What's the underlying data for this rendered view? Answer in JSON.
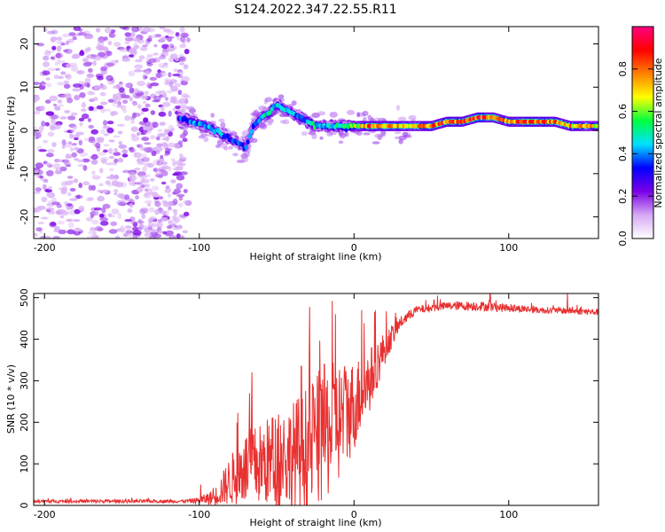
{
  "title": "S124.2022.347.22.55.R11",
  "chart_data": [
    {
      "type": "heatmap",
      "xlabel": "Height of straight line (km)",
      "ylabel": "Frequency (Hz)",
      "xlim": [
        -207,
        158
      ],
      "ylim": [
        -25,
        24
      ],
      "xticks": [
        -200,
        -100,
        0,
        100
      ],
      "yticks": [
        -20,
        -10,
        0,
        10,
        20
      ],
      "colorbar": {
        "label": "Normalized spectral amplitude",
        "range": [
          0.0,
          1.0
        ],
        "ticks": [
          "0.0",
          "0.2",
          "0.4",
          "0.6",
          "0.8"
        ],
        "colors": [
          "#ffffff",
          "#d6a9f5",
          "#7a00e6",
          "#0000ff",
          "#00e0ff",
          "#00ff40",
          "#ffff00",
          "#ff8000",
          "#ff0000",
          "#ff0080"
        ]
      },
      "ridge": {
        "x": [
          -115,
          -105,
          -95,
          -90,
          -85,
          -80,
          -75,
          -70,
          -65,
          -60,
          -55,
          -50,
          -45,
          -40,
          -35,
          -30,
          -25,
          -20,
          -10,
          0,
          10,
          20,
          30,
          40,
          50,
          60,
          70,
          80,
          85,
          90,
          100,
          110,
          120,
          130,
          140,
          158
        ],
        "freq": [
          3,
          2,
          1,
          0,
          -1,
          -2,
          -3,
          -4,
          1,
          3,
          4,
          6,
          5,
          4,
          3,
          2,
          1,
          1,
          1,
          1,
          1,
          1,
          1,
          1,
          1,
          2,
          2,
          3,
          3,
          3,
          2,
          2,
          2,
          2,
          1,
          1
        ],
        "amplitude": [
          0.35,
          0.4,
          0.45,
          0.45,
          0.4,
          0.35,
          0.35,
          0.35,
          0.4,
          0.45,
          0.5,
          0.45,
          0.5,
          0.45,
          0.4,
          0.45,
          0.5,
          0.45,
          0.5,
          0.6,
          0.85,
          0.8,
          0.75,
          0.7,
          0.8,
          0.85,
          0.8,
          0.9,
          0.85,
          0.8,
          0.75,
          0.85,
          0.85,
          0.8,
          0.75,
          0.7
        ]
      },
      "noise_region_x": [
        -207,
        -115
      ]
    },
    {
      "type": "line",
      "xlabel": "Height of straight line (km)",
      "ylabel": "SNR (10 * v/v)",
      "xlim": [
        -207,
        158
      ],
      "ylim": [
        0,
        510
      ],
      "xticks": [
        -200,
        -100,
        0,
        100
      ],
      "yticks": [
        0,
        100,
        200,
        300,
        400,
        500
      ],
      "color": "#e83030",
      "envelope": {
        "x": [
          -207,
          -110,
          -100,
          -90,
          -80,
          -70,
          -60,
          -50,
          -40,
          -30,
          -20,
          -10,
          0,
          10,
          20,
          30,
          40,
          60,
          80,
          100,
          120,
          140,
          158
        ],
        "mean": [
          10,
          10,
          12,
          20,
          60,
          90,
          100,
          110,
          120,
          140,
          170,
          200,
          240,
          300,
          380,
          440,
          470,
          480,
          480,
          475,
          470,
          468,
          465
        ],
        "spread": [
          4,
          4,
          8,
          20,
          60,
          90,
          100,
          120,
          130,
          150,
          170,
          150,
          110,
          80,
          40,
          15,
          10,
          10,
          12,
          10,
          8,
          8,
          8
        ]
      },
      "spikes": [
        {
          "x": -99,
          "y": 50
        },
        {
          "x": -66,
          "y": 320
        },
        {
          "x": -34,
          "y": 335
        },
        {
          "x": -12,
          "y": 460
        },
        {
          "x": 5,
          "y": 470
        },
        {
          "x": 54,
          "y": 505
        },
        {
          "x": 88,
          "y": 510
        },
        {
          "x": 138,
          "y": 515
        }
      ]
    }
  ]
}
